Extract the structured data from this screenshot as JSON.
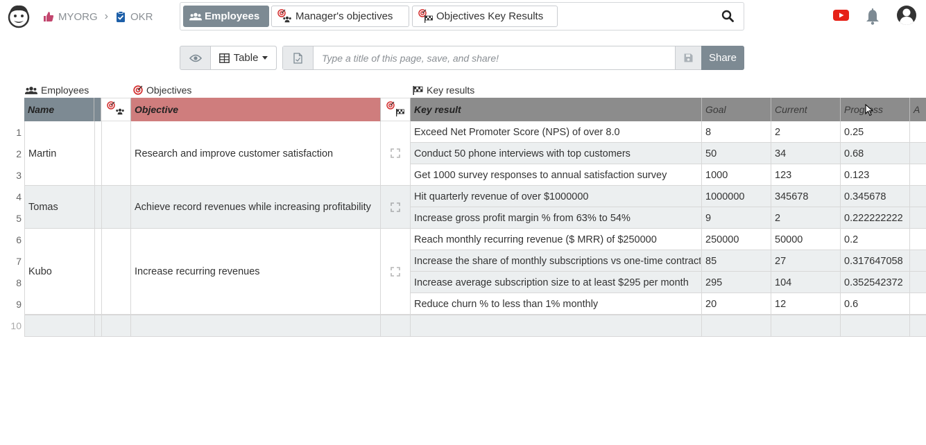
{
  "breadcrumb": {
    "org": "MYORG",
    "doc": "OKR"
  },
  "nav": {
    "tabs": [
      {
        "label": "Employees"
      },
      {
        "label": "Manager's objectives"
      },
      {
        "label": "Objectives Key Results"
      }
    ]
  },
  "toolbar": {
    "view_label": "Table",
    "title_placeholder": "Type a title of this page, save, and share!",
    "share_label": "Share"
  },
  "groups": {
    "employees": "Employees",
    "objectives": "Objectives",
    "key_results": "Key results"
  },
  "columns": {
    "name": "Name",
    "objective": "Objective",
    "key_result": "Key result",
    "goal": "Goal",
    "current": "Current",
    "progress": "Progress",
    "a": "A"
  },
  "employees": [
    {
      "name": "Martin",
      "objective": "Research and improve customer satisfaction"
    },
    {
      "name": "Tomas",
      "objective": "Achieve record revenues while increasing profitability"
    },
    {
      "name": "Kubo",
      "objective": "Increase recurring revenues"
    }
  ],
  "key_results": [
    {
      "row": "1",
      "text": "Exceed Net Promoter Score (NPS) of over 8.0",
      "goal": "8",
      "current": "2",
      "progress": "0.25"
    },
    {
      "row": "2",
      "text": "Conduct 50 phone interviews with top customers",
      "goal": "50",
      "current": "34",
      "progress": "0.68"
    },
    {
      "row": "3",
      "text": "Get 1000 survey responses to annual satisfaction survey",
      "goal": "1000",
      "current": "123",
      "progress": "0.123"
    },
    {
      "row": "4",
      "text": "Hit quarterly revenue of over $1000000",
      "goal": "1000000",
      "current": "345678",
      "progress": "0.345678"
    },
    {
      "row": "5",
      "text": "Increase gross profit margin % from 63% to 54%",
      "goal": "9",
      "current": "2",
      "progress": "0.222222222"
    },
    {
      "row": "6",
      "text": "Reach monthly recurring revenue ($ MRR) of $250000",
      "goal": "250000",
      "current": "50000",
      "progress": "0.2"
    },
    {
      "row": "7",
      "text": "Increase the share of monthly subscriptions vs one-time contracts",
      "goal": "85",
      "current": "27",
      "progress": "0.317647058"
    },
    {
      "row": "8",
      "text": "Increase average subscription size to at least $295 per month",
      "goal": "295",
      "current": "104",
      "progress": "0.352542372"
    },
    {
      "row": "9",
      "text": "Reduce churn % to less than 1% monthly",
      "goal": "20",
      "current": "12",
      "progress": "0.6"
    }
  ],
  "new_row_number": "10",
  "colors": {
    "accent_gray": "#7d8a93",
    "objective_header": "#cf7d7d",
    "keyresult_header": "#8c8c8c",
    "row_alt": "#eceff0",
    "youtube_red": "#e62117"
  }
}
